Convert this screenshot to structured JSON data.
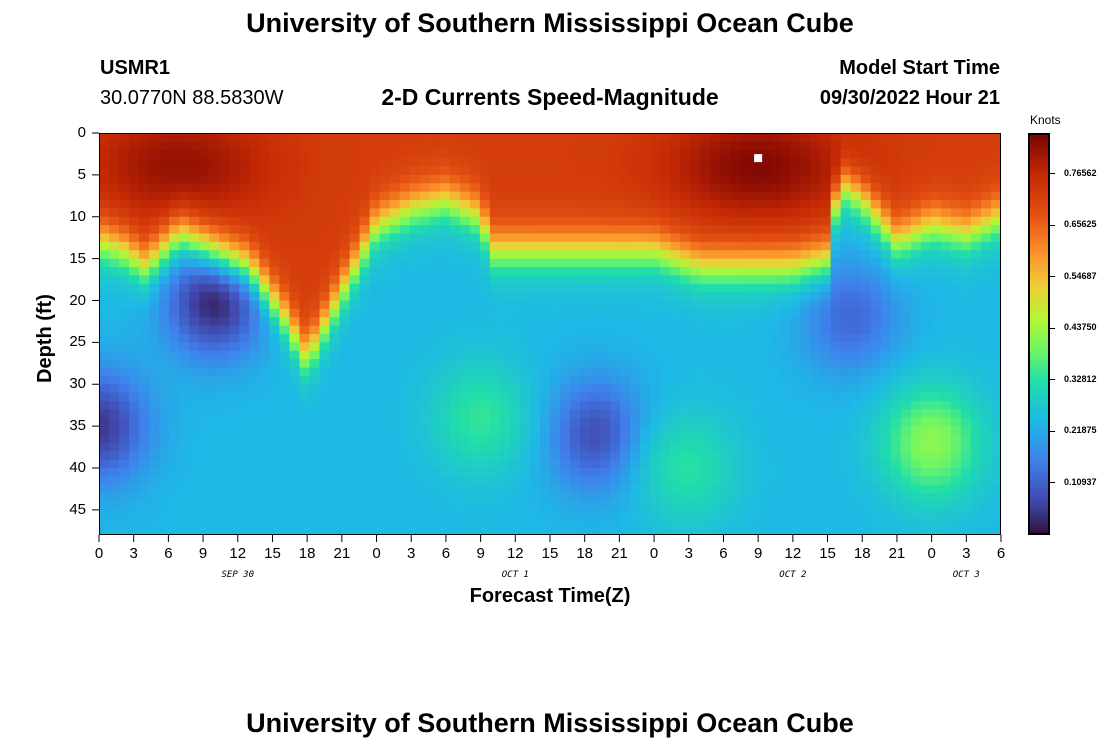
{
  "page": {
    "title": "University of Southern Mississippi Ocean Cube",
    "bottom_title": "University of Southern Mississippi Ocean Cube"
  },
  "station": {
    "id": "USMR1",
    "coords": "30.0770N  88.5830W"
  },
  "model": {
    "label": "Model Start Time",
    "start": "09/30/2022 Hour 21"
  },
  "chart_data": {
    "type": "heatmap",
    "title": "2-D Currents Speed-Magnitude",
    "xlabel": "Forecast Time(Z)",
    "ylabel": "Depth (ft)",
    "x_range_hours": [
      0,
      78
    ],
    "y_range_ft": [
      0,
      48
    ],
    "y_ticks": [
      "0",
      "5",
      "10",
      "15",
      "20",
      "25",
      "30",
      "35",
      "40",
      "45"
    ],
    "x_ticks": [
      "0",
      "3",
      "6",
      "9",
      "12",
      "15",
      "18",
      "21",
      "0",
      "3",
      "6",
      "9",
      "12",
      "15",
      "18",
      "21",
      "0",
      "3",
      "6",
      "9",
      "12",
      "15",
      "18",
      "21",
      "0",
      "3",
      "6"
    ],
    "date_labels": [
      {
        "text": "SEP 30",
        "hour": 12
      },
      {
        "text": "OCT 1",
        "hour": 36
      },
      {
        "text": "OCT 2",
        "hour": 60
      },
      {
        "text": "OCT 3",
        "hour": 75
      }
    ],
    "colorbar": {
      "label": "Knots",
      "min": 0.0,
      "max": 0.85,
      "ticks": [
        "0.76562",
        "0.65625",
        "0.54687",
        "0.43750",
        "0.32812",
        "0.21875",
        "0.10937"
      ],
      "tick_values": [
        0.76562,
        0.65625,
        0.54687,
        0.4375,
        0.32812,
        0.21875,
        0.10937
      ]
    },
    "surface_layer_depth_ft": [
      {
        "hour": 0,
        "depth": 13
      },
      {
        "hour": 2,
        "depth": 14
      },
      {
        "hour": 4,
        "depth": 16
      },
      {
        "hour": 7,
        "depth": 12
      },
      {
        "hour": 10,
        "depth": 14
      },
      {
        "hour": 13,
        "depth": 16
      },
      {
        "hour": 16,
        "depth": 22
      },
      {
        "hour": 18,
        "depth": 27
      },
      {
        "hour": 21,
        "depth": 19
      },
      {
        "hour": 24,
        "depth": 11
      },
      {
        "hour": 27,
        "depth": 9
      },
      {
        "hour": 30,
        "depth": 8
      },
      {
        "hour": 33,
        "depth": 10
      },
      {
        "hour": 34,
        "depth": 14
      },
      {
        "hour": 36,
        "depth": 14
      },
      {
        "hour": 42,
        "depth": 14
      },
      {
        "hour": 48,
        "depth": 14
      },
      {
        "hour": 52,
        "depth": 16
      },
      {
        "hour": 56,
        "depth": 16
      },
      {
        "hour": 60,
        "depth": 16
      },
      {
        "hour": 63,
        "depth": 15
      },
      {
        "hour": 64,
        "depth": 6
      },
      {
        "hour": 66,
        "depth": 8
      },
      {
        "hour": 69,
        "depth": 13
      },
      {
        "hour": 72,
        "depth": 11
      },
      {
        "hour": 75,
        "depth": 12
      },
      {
        "hour": 78,
        "depth": 10
      }
    ],
    "features": [
      {
        "hour": 7,
        "depth": 4,
        "value": 0.82,
        "kind": "surface-max"
      },
      {
        "hour": 57,
        "depth": 4,
        "value": 0.84,
        "kind": "surface-max"
      },
      {
        "hour": 10,
        "depth": 20,
        "value": 0.02,
        "kind": "low"
      },
      {
        "hour": 43,
        "depth": 36,
        "value": 0.08,
        "kind": "low"
      },
      {
        "hour": 0,
        "depth": 35,
        "value": 0.05,
        "kind": "low"
      },
      {
        "hour": 65,
        "depth": 22,
        "value": 0.12,
        "kind": "low"
      },
      {
        "hour": 33,
        "depth": 34,
        "value": 0.34,
        "kind": "high"
      },
      {
        "hour": 72,
        "depth": 37,
        "value": 0.42,
        "kind": "high"
      },
      {
        "hour": 51,
        "depth": 40,
        "value": 0.33,
        "kind": "high"
      }
    ],
    "marker": {
      "hour": 57,
      "depth": 3
    }
  }
}
